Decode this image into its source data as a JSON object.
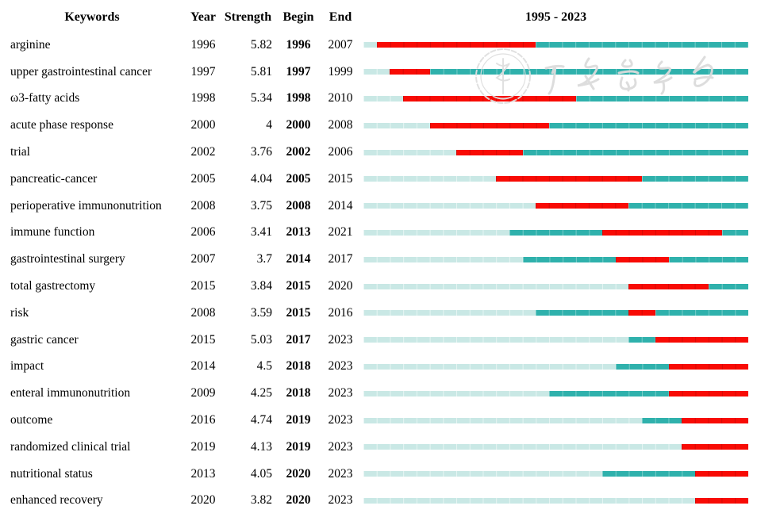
{
  "colors": {
    "teal": "#2FB1AC",
    "light_teal": "#C9E8E5",
    "burst_red": "#F80B05",
    "text": "#000000",
    "watermark_gray": "#DEDEDE"
  },
  "watermark": {
    "text": "中华医学会",
    "description": "faint circular medical-association seal with cursive calligraphy"
  },
  "chart_data": {
    "type": "table",
    "title": "1995 - 2023",
    "columns": [
      "Keywords",
      "Year",
      "Strength",
      "Begin",
      "End"
    ],
    "timeline": {
      "min_year": 1995,
      "max_year": 2023,
      "segment_legend": {
        "light_teal": "years before keyword first appears",
        "teal": "keyword present, no burst",
        "red": "citation burst interval (Begin to End)"
      }
    },
    "rows": [
      {
        "keyword": "arginine",
        "year": 1996,
        "strength": "5.82",
        "begin": 1996,
        "end": 2007
      },
      {
        "keyword": "upper gastrointestinal cancer",
        "year": 1997,
        "strength": "5.81",
        "begin": 1997,
        "end": 1999
      },
      {
        "keyword": "ω3-fatty acids",
        "year": 1998,
        "strength": "5.34",
        "begin": 1998,
        "end": 2010
      },
      {
        "keyword": "acute phase response",
        "year": 2000,
        "strength": "4",
        "begin": 2000,
        "end": 2008
      },
      {
        "keyword": "trial",
        "year": 2002,
        "strength": "3.76",
        "begin": 2002,
        "end": 2006
      },
      {
        "keyword": "pancreatic-cancer",
        "year": 2005,
        "strength": "4.04",
        "begin": 2005,
        "end": 2015
      },
      {
        "keyword": "perioperative immunonutrition",
        "year": 2008,
        "strength": "3.75",
        "begin": 2008,
        "end": 2014
      },
      {
        "keyword": "immune function",
        "year": 2006,
        "strength": "3.41",
        "begin": 2013,
        "end": 2021
      },
      {
        "keyword": "gastrointestinal surgery",
        "year": 2007,
        "strength": "3.7",
        "begin": 2014,
        "end": 2017
      },
      {
        "keyword": "total gastrectomy",
        "year": 2015,
        "strength": "3.84",
        "begin": 2015,
        "end": 2020
      },
      {
        "keyword": "risk",
        "year": 2008,
        "strength": "3.59",
        "begin": 2015,
        "end": 2016
      },
      {
        "keyword": "gastric cancer",
        "year": 2015,
        "strength": "5.03",
        "begin": 2017,
        "end": 2023
      },
      {
        "keyword": "impact",
        "year": 2014,
        "strength": "4.5",
        "begin": 2018,
        "end": 2023
      },
      {
        "keyword": "enteral immunonutrition",
        "year": 2009,
        "strength": "4.25",
        "begin": 2018,
        "end": 2023
      },
      {
        "keyword": "outcome",
        "year": 2016,
        "strength": "4.74",
        "begin": 2019,
        "end": 2023
      },
      {
        "keyword": "randomized clinical trial",
        "year": 2019,
        "strength": "4.13",
        "begin": 2019,
        "end": 2023
      },
      {
        "keyword": "nutritional status",
        "year": 2013,
        "strength": "4.05",
        "begin": 2020,
        "end": 2023
      },
      {
        "keyword": "enhanced recovery",
        "year": 2020,
        "strength": "3.82",
        "begin": 2020,
        "end": 2023
      }
    ]
  },
  "header": {
    "keywords": "Keywords",
    "year": "Year",
    "strength": "Strength",
    "begin": "Begin",
    "end": "End",
    "range": "1995 - 2023"
  }
}
